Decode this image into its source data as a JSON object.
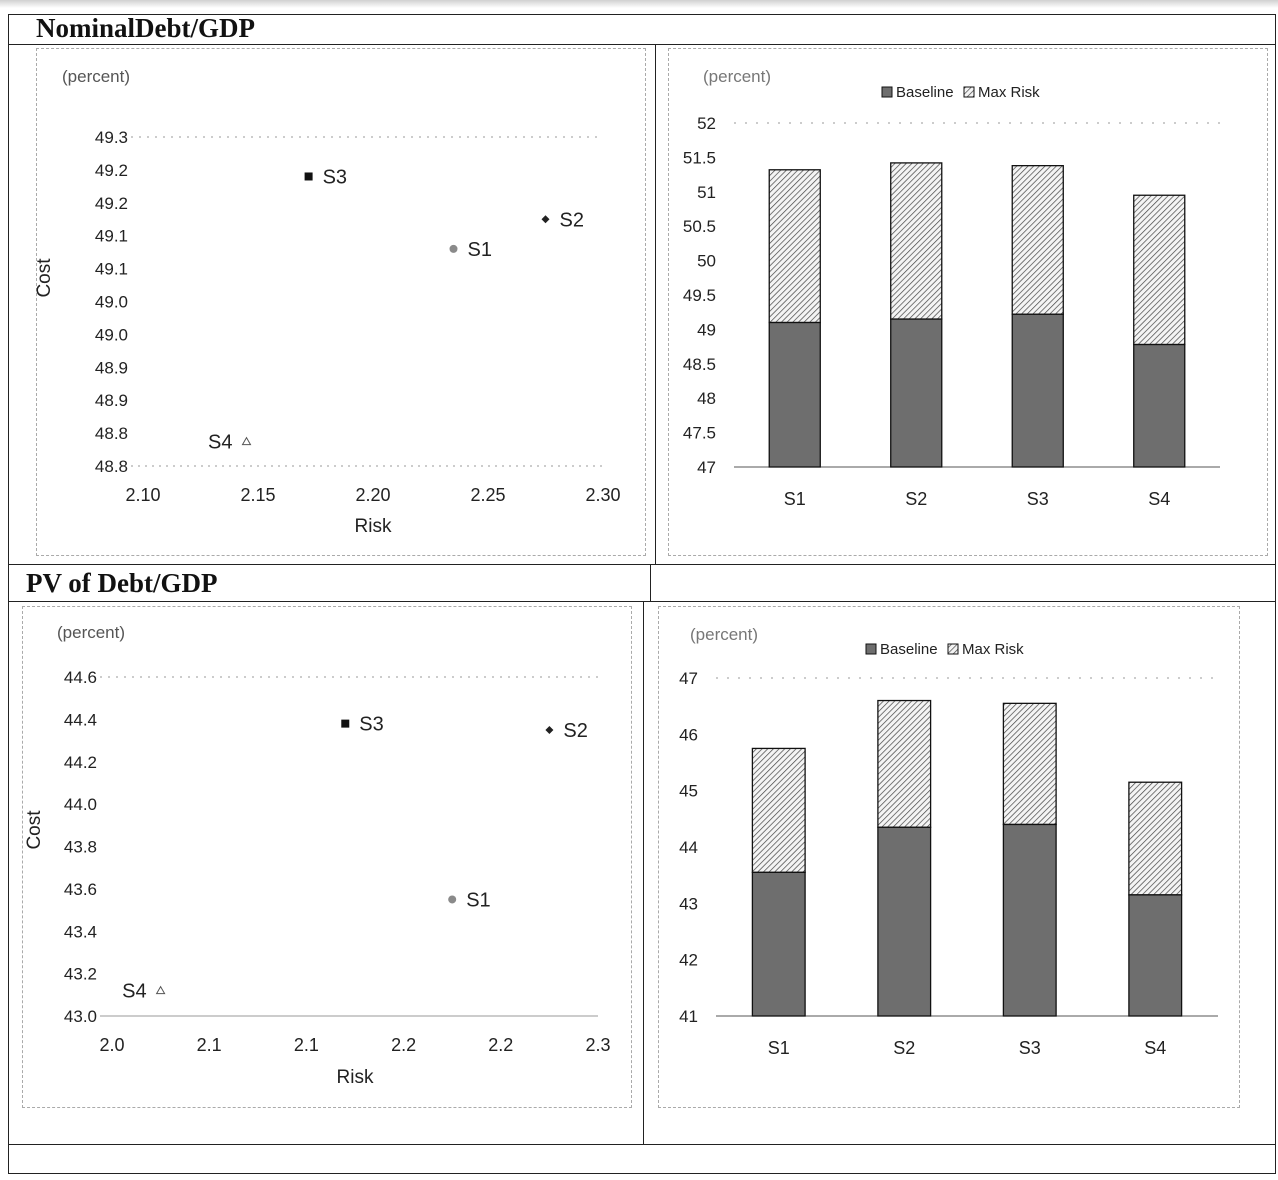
{
  "sections": [
    {
      "title": "NominalDebt/GDP"
    },
    {
      "title": "PV of Debt/GDP"
    }
  ],
  "chart_data": [
    {
      "type": "scatter",
      "unit_label": "(percent)",
      "xlabel": "Risk",
      "ylabel": "Cost",
      "x_ticks": [
        "2.10",
        "2.15",
        "2.20",
        "2.25",
        "2.30"
      ],
      "y_ticks": [
        "49.3",
        "49.2",
        "49.2",
        "49.1",
        "49.1",
        "49.0",
        "49.0",
        "48.9",
        "48.9",
        "48.8",
        "48.8"
      ],
      "xlim": [
        2.1,
        2.3
      ],
      "ylim": [
        48.775,
        49.275
      ],
      "points": [
        {
          "label": "S1",
          "x": 2.235,
          "y": 49.105,
          "marker": "circle"
        },
        {
          "label": "S2",
          "x": 2.275,
          "y": 49.15,
          "marker": "diamond"
        },
        {
          "label": "S3",
          "x": 2.172,
          "y": 49.215,
          "marker": "square"
        },
        {
          "label": "S4",
          "x": 2.145,
          "y": 48.812,
          "marker": "triangle"
        }
      ]
    },
    {
      "type": "bar",
      "unit_label": "(percent)",
      "categories": [
        "S1",
        "S2",
        "S3",
        "S4"
      ],
      "y_ticks": [
        "52",
        "51.5",
        "51",
        "50.5",
        "50",
        "49.5",
        "49",
        "48.5",
        "48",
        "47.5",
        "47"
      ],
      "ylim": [
        47,
        52
      ],
      "series": [
        {
          "name": "Baseline",
          "values": [
            49.1,
            49.15,
            49.22,
            48.78
          ]
        },
        {
          "name": "Max Risk",
          "values": [
            51.32,
            51.42,
            51.38,
            50.95
          ]
        }
      ],
      "legend": "top-center"
    },
    {
      "type": "scatter",
      "unit_label": "(percent)",
      "xlabel": "Risk",
      "ylabel": "Cost",
      "x_ticks": [
        "2.0",
        "2.1",
        "2.1",
        "2.2",
        "2.2",
        "2.3"
      ],
      "y_ticks": [
        "44.6",
        "44.4",
        "44.2",
        "44.0",
        "43.8",
        "43.6",
        "43.4",
        "43.2",
        "43.0"
      ],
      "xlim": [
        2.0,
        2.25
      ],
      "ylim": [
        43.0,
        44.6
      ],
      "points": [
        {
          "label": "S1",
          "x": 2.175,
          "y": 43.55,
          "marker": "circle"
        },
        {
          "label": "S2",
          "x": 2.225,
          "y": 44.35,
          "marker": "diamond"
        },
        {
          "label": "S3",
          "x": 2.12,
          "y": 44.38,
          "marker": "square"
        },
        {
          "label": "S4",
          "x": 2.025,
          "y": 43.12,
          "marker": "triangle"
        }
      ]
    },
    {
      "type": "bar",
      "unit_label": "(percent)",
      "categories": [
        "S1",
        "S2",
        "S3",
        "S4"
      ],
      "y_ticks": [
        "47",
        "46",
        "45",
        "44",
        "43",
        "42",
        "41"
      ],
      "ylim": [
        41,
        47
      ],
      "series": [
        {
          "name": "Baseline",
          "values": [
            43.55,
            44.35,
            44.4,
            43.15
          ]
        },
        {
          "name": "Max Risk",
          "values": [
            45.75,
            46.6,
            46.55,
            45.15
          ]
        }
      ],
      "legend": "top-center"
    }
  ],
  "colors": {
    "baseline_fill": "#6e6e6e",
    "maxrisk_fill": "#cfcfcf",
    "axis": "#555555",
    "text": "#222222",
    "grid_dots": "#9a9a9a"
  }
}
